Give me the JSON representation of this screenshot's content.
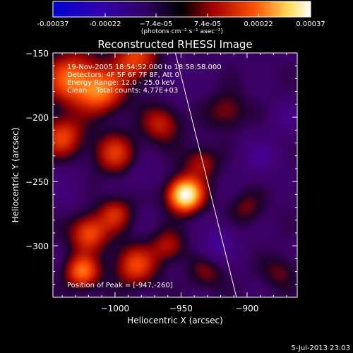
{
  "chart_data": {
    "type": "heatmap",
    "title": "Reconstructed RHESSI Image",
    "xlabel": "Heliocentric X (arcsec)",
    "ylabel": "Heliocentric Y (arcsec)",
    "xlim": [
      -1047,
      -862
    ],
    "ylim": [
      -340,
      -150
    ],
    "x_ticks": [
      -1000,
      -950,
      -900
    ],
    "x_tick_labels": [
      "−1000",
      "−950",
      "−900"
    ],
    "y_ticks": [
      -150,
      -200,
      -250,
      -300
    ],
    "y_tick_labels": [
      "−150",
      "−200",
      "−250",
      "−300"
    ],
    "colorbar": {
      "range": [
        -0.00037,
        0.00037
      ],
      "ticks": [
        -0.00037,
        -0.00022,
        -7.4e-05,
        7.4e-05,
        0.00022,
        0.00037
      ],
      "tick_labels": [
        "-0.00037",
        "-0.00022",
        "−7.4e-05",
        "7.4e-05",
        "0.00022",
        "0.00037"
      ],
      "unit_label": "(photons cm⁻² s⁻¹ asec⁻²)",
      "colors": [
        "#0000d0",
        "#4000a0",
        "#000000",
        "#a00000",
        "#ff6000",
        "#ffe060",
        "#ffffff"
      ]
    },
    "annotations": [
      "19-Nov-2005 18:54:52.000 to 18:58:58.000",
      "Detectors: 4F 5F 6F 7F 8F, Att 0",
      "Energy Range: 12.0 - 25.0 keV",
      "Clean    Total counts: 4.77E+03"
    ],
    "peak_label": "Position of Peak = [-947,-260]",
    "peak": [
      -947,
      -260
    ],
    "limb_line": [
      [
        -956,
        -143
      ],
      [
        -908,
        -340
      ]
    ],
    "sources": [
      {
        "x": -947,
        "y": -260,
        "amp": 1.0,
        "sigma": 9
      },
      {
        "x": -1033,
        "y": -170,
        "amp": 0.55,
        "sigma": 14
      },
      {
        "x": -1010,
        "y": -180,
        "amp": 0.5,
        "sigma": 12
      },
      {
        "x": -985,
        "y": -155,
        "amp": 0.45,
        "sigma": 12
      },
      {
        "x": -1040,
        "y": -215,
        "amp": 0.45,
        "sigma": 11
      },
      {
        "x": -1000,
        "y": -228,
        "amp": 0.4,
        "sigma": 11
      },
      {
        "x": -965,
        "y": -205,
        "amp": 0.35,
        "sigma": 10
      },
      {
        "x": -1020,
        "y": -290,
        "amp": 0.5,
        "sigma": 10
      },
      {
        "x": -1000,
        "y": -275,
        "amp": 0.35,
        "sigma": 9
      },
      {
        "x": -1025,
        "y": -320,
        "amp": 0.55,
        "sigma": 9
      },
      {
        "x": -985,
        "y": -315,
        "amp": 0.45,
        "sigma": 11
      },
      {
        "x": -960,
        "y": -300,
        "amp": 0.3,
        "sigma": 9
      },
      {
        "x": -915,
        "y": -195,
        "amp": 0.25,
        "sigma": 10
      },
      {
        "x": -935,
        "y": -235,
        "amp": 0.3,
        "sigma": 9
      },
      {
        "x": -900,
        "y": -270,
        "amp": 0.2,
        "sigma": 9
      },
      {
        "x": -930,
        "y": -320,
        "amp": 0.2,
        "sigma": 10
      },
      {
        "x": -875,
        "y": -320,
        "amp": 0.2,
        "sigma": 9
      },
      {
        "x": -890,
        "y": -230,
        "amp": -0.35,
        "sigma": 10
      },
      {
        "x": -922,
        "y": -298,
        "amp": -0.45,
        "sigma": 9
      },
      {
        "x": -868,
        "y": -200,
        "amp": -0.3,
        "sigma": 8
      },
      {
        "x": -1040,
        "y": -255,
        "amp": -0.2,
        "sigma": 10
      },
      {
        "x": -955,
        "y": -170,
        "amp": -0.15,
        "sigma": 9
      },
      {
        "x": -980,
        "y": -245,
        "amp": -0.15,
        "sigma": 8
      }
    ]
  },
  "footer": {
    "timestamp": "5-Jul-2013 23:03"
  }
}
